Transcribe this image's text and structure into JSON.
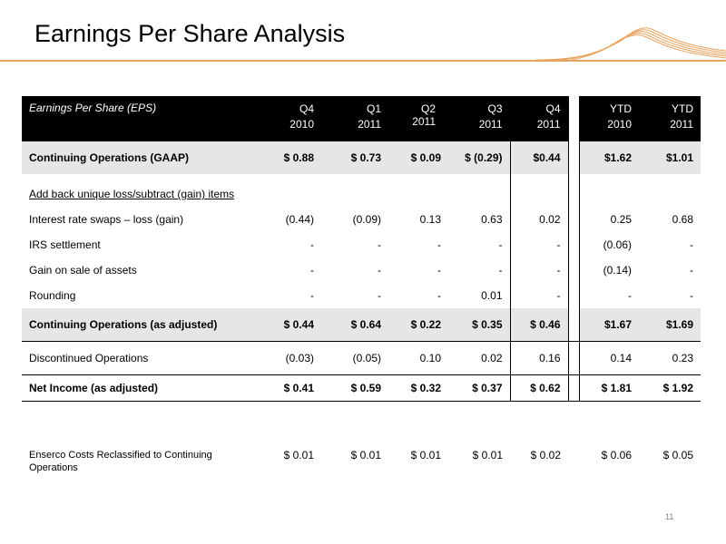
{
  "title": "Earnings Per Share Analysis",
  "page_number": "11",
  "table": {
    "header": {
      "label": "Earnings Per Share (EPS)",
      "columns": [
        {
          "top": "Q4",
          "bottom": "2010"
        },
        {
          "top": "Q1",
          "bottom": "2011"
        },
        {
          "top": "Q2",
          "bottom": "2011"
        },
        {
          "top": "Q3",
          "bottom": "2011"
        },
        {
          "top": "Q4",
          "bottom": "2011"
        },
        {
          "top": "YTD",
          "bottom": "2010"
        },
        {
          "top": "YTD",
          "bottom": "2011"
        }
      ]
    },
    "rows": {
      "gaap": {
        "label": "Continuing Operations (GAAP)",
        "values": [
          "$ 0.88",
          "$ 0.73",
          "$ 0.09",
          "$ (0.29)",
          "$0.44",
          "$1.62",
          "$1.01"
        ]
      },
      "addback": {
        "label": "Add back unique loss/subtract (gain) items"
      },
      "swaps": {
        "label": "Interest rate swaps – loss (gain)",
        "values": [
          "(0.44)",
          "(0.09)",
          "0.13",
          "0.63",
          "0.02",
          "0.25",
          "0.68"
        ]
      },
      "irs": {
        "label": "IRS settlement",
        "values": [
          "-",
          "-",
          "-",
          "-",
          "-",
          "(0.06)",
          "-"
        ]
      },
      "gain": {
        "label": "Gain on sale of assets",
        "values": [
          "-",
          "-",
          "-",
          "-",
          "-",
          "(0.14)",
          "-"
        ]
      },
      "rounding": {
        "label": "Rounding",
        "values": [
          "-",
          "-",
          "-",
          "0.01",
          "-",
          "-",
          "-"
        ]
      },
      "adjusted": {
        "label": "Continuing Operations (as adjusted)",
        "values": [
          "$ 0.44",
          "$ 0.64",
          "$ 0.22",
          "$ 0.35",
          "$ 0.46",
          "$1.67",
          "$1.69"
        ]
      },
      "discontinued": {
        "label": "Discontinued Operations",
        "values": [
          "(0.03)",
          "(0.05)",
          "0.10",
          "0.02",
          "0.16",
          "0.14",
          "0.23"
        ]
      },
      "net_income": {
        "label": "Net Income (as adjusted)",
        "values": [
          "$ 0.41",
          "$ 0.59",
          "$ 0.32",
          "$ 0.37",
          "$ 0.62",
          "$ 1.81",
          "$ 1.92"
        ]
      },
      "enserco": {
        "label": "Enserco Costs Reclassified to Continuing Operations",
        "values": [
          "$ 0.01",
          "$ 0.01",
          "$ 0.01",
          "$ 0.01",
          "$ 0.02",
          "$ 0.06",
          "$ 0.05"
        ]
      }
    }
  },
  "colors": {
    "accent_rule": "#e8a35f",
    "header_bg": "#000000",
    "shade_bg": "#e6e6e6"
  }
}
